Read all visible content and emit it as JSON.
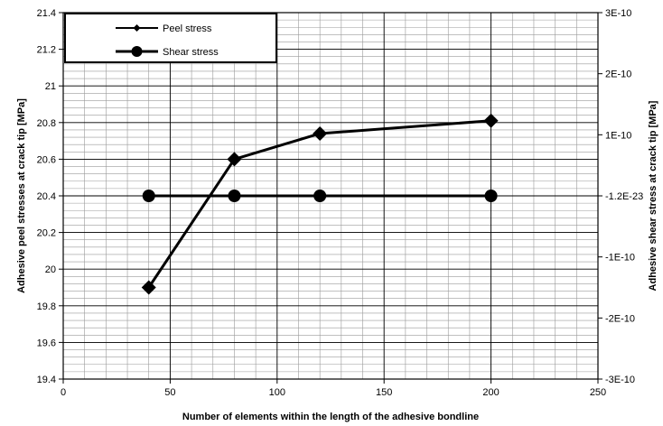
{
  "chart_data": {
    "type": "line",
    "title": "",
    "xlabel": "Number of elements within the length of the adhesive bondline",
    "ylabel_left": "Adhesive peel stresses at crack tip [MPa]",
    "ylabel_right": "Adhesive shear stress at crack tip [MPa]",
    "xlim": [
      0,
      250
    ],
    "ylim_left": [
      19.4,
      21.4
    ],
    "ylim_right": [
      -3e-10,
      3e-10
    ],
    "x_ticks": [
      "0",
      "50",
      "100",
      "150",
      "200",
      "250"
    ],
    "y_left_ticks": [
      "19.4",
      "19.6",
      "19.8",
      "20",
      "20.2",
      "20.4",
      "20.6",
      "20.8",
      "21",
      "21.2",
      "21.4"
    ],
    "y_right_ticks": [
      "-3E-10",
      "-2E-10",
      "-1E-10",
      "-1.2E-23",
      "1E-10",
      "2E-10",
      "3E-10"
    ],
    "grid": true,
    "legend_position": "top-left",
    "series": [
      {
        "name": "Peel stress",
        "axis": "left",
        "marker": "diamond",
        "color": "#000000",
        "x": [
          40,
          80,
          120,
          200
        ],
        "values": [
          19.9,
          20.6,
          20.74,
          20.81
        ]
      },
      {
        "name": "Shear stress",
        "axis": "right",
        "marker": "circle",
        "color": "#000000",
        "x": [
          40,
          80,
          120,
          200
        ],
        "values": [
          -1.2e-23,
          -1.2e-23,
          -1.2e-23,
          -1.2e-23
        ]
      }
    ]
  }
}
